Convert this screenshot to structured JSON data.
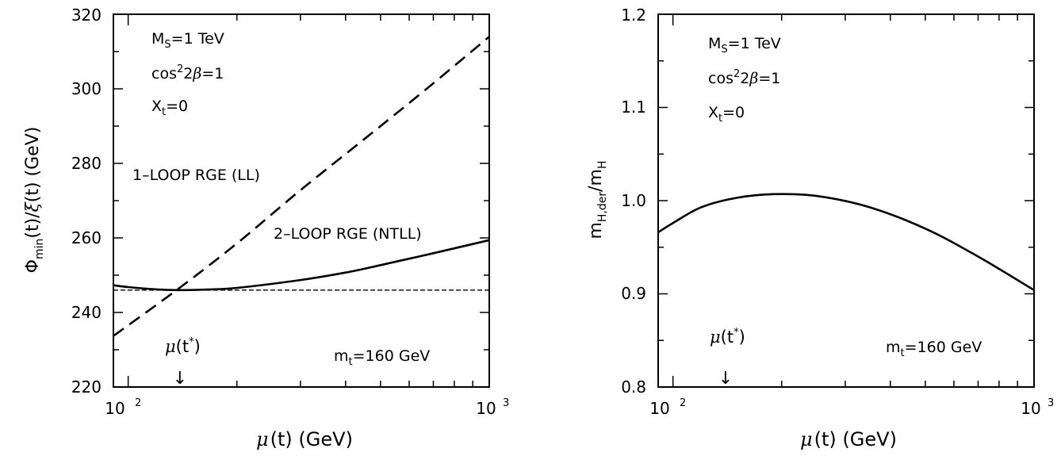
{
  "chart_data": [
    {
      "type": "line",
      "xscale": "log",
      "xlim": [
        91,
        1000
      ],
      "ylim": [
        220,
        320
      ],
      "xticks": [
        {
          "value": 100,
          "base": "10",
          "exp": "2"
        },
        {
          "value": 1000,
          "base": "10",
          "exp": "3"
        }
      ],
      "yticks": [
        220,
        240,
        260,
        280,
        300,
        320
      ],
      "xlabel": {
        "mu": "μ",
        "rest": "(t)  (GeV)"
      },
      "ylabel": {
        "phi": "Φ",
        "phi_sub": "min",
        "mid": "(t)/",
        "xi": "ξ",
        "rest": "(t)  (GeV)"
      },
      "annotations": {
        "ms_base": "M",
        "ms_sub": "S",
        "ms_val": "=1  TeV",
        "cos_base": "cos",
        "cos_sup": "2",
        "cos_mid": "2",
        "cos_beta": "β",
        "cos_val": "=1",
        "xt_base": "X",
        "xt_sub": "t",
        "xt_val": "=0",
        "mt_base": "m",
        "mt_sub": "t",
        "mt_val": "=160  GeV",
        "mustar_mu": "μ",
        "mustar_t": "(t",
        "mustar_star": "*",
        "mustar_close": ")",
        "arrow": "↓",
        "series_label_ll": "1–LOOP  RGE  (LL)",
        "series_label_ntll": "2–LOOP  RGE  (NTLL)"
      },
      "mu_star": 137,
      "series": [
        {
          "style": "dashed",
          "x": [
            91,
            137,
            200,
            300,
            500,
            700,
            1000
          ],
          "y": [
            233.7,
            246.2,
            258.5,
            272.8,
            290.0,
            301.5,
            314.0
          ]
        },
        {
          "style": "solid",
          "x": [
            91,
            100,
            120,
            137,
            160,
            200,
            300,
            400,
            500,
            700,
            1000
          ],
          "y": [
            247.3,
            246.8,
            246.2,
            246.0,
            246.1,
            246.6,
            248.7,
            250.7,
            252.7,
            255.9,
            259.4
          ]
        },
        {
          "style": "thin-dashed",
          "x": [
            91,
            1000
          ],
          "y": [
            246.0,
            246.0
          ]
        }
      ]
    },
    {
      "type": "line",
      "xscale": "log",
      "xlim": [
        91,
        1000
      ],
      "ylim": [
        0.8,
        1.2
      ],
      "xticks": [
        {
          "value": 100,
          "base": "10",
          "exp": "2"
        },
        {
          "value": 1000,
          "base": "10",
          "exp": "3"
        }
      ],
      "yticks": [
        "0.8",
        "0.9",
        "1.0",
        "1.1",
        "1.2"
      ],
      "xlabel": {
        "mu": "μ",
        "rest": "(t)  (GeV)"
      },
      "ylabel": {
        "m1": "m",
        "sub1": "H,der",
        "slash": "/",
        "m2": "m",
        "sub2": "H"
      },
      "annotations": {
        "ms_base": "M",
        "ms_sub": "S",
        "ms_val": "=1  TeV",
        "cos_base": "cos",
        "cos_sup": "2",
        "cos_mid": "2",
        "cos_beta": "β",
        "cos_val": "=1",
        "xt_base": "X",
        "xt_sub": "t",
        "xt_val": "=0",
        "mt_base": "m",
        "mt_sub": "t",
        "mt_val": "=160  GeV",
        "mustar_mu": "μ",
        "mustar_t": "(t",
        "mustar_star": "*",
        "mustar_close": ")",
        "arrow": "↓"
      },
      "mu_star": 137,
      "series": [
        {
          "style": "solid",
          "x": [
            91,
            100,
            120,
            150,
            190,
            250,
            350,
            500,
            700,
            1000
          ],
          "y": [
            0.966,
            0.976,
            0.993,
            1.003,
            1.007,
            1.005,
            0.993,
            0.97,
            0.94,
            0.904
          ]
        }
      ]
    }
  ]
}
